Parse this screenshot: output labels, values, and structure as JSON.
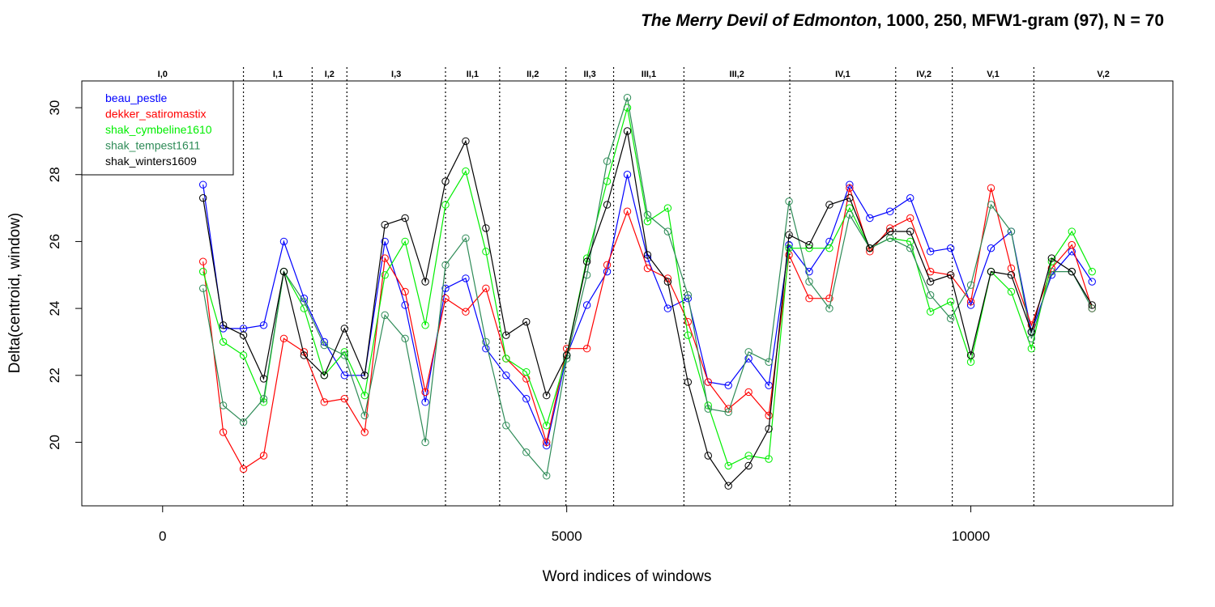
{
  "chart_data": {
    "type": "line",
    "title_italic": "The Merry Devil of Edmonton",
    "title_rest": ", 1000, 250, MFW1-gram (97), N = 70",
    "xlabel": "Word indices of windows",
    "ylabel": "Delta(centroid, window)",
    "xlim": [
      -1000,
      12500
    ],
    "ylim": [
      18.1,
      30.8
    ],
    "xticks": [
      0,
      5000,
      10000
    ],
    "yticks": [
      20,
      22,
      24,
      26,
      28,
      30
    ],
    "legend_position": "top-left",
    "x": [
      500,
      750,
      1000,
      1250,
      1500,
      1750,
      2000,
      2250,
      2500,
      2750,
      3000,
      3250,
      3500,
      3750,
      4000,
      4250,
      4500,
      4750,
      5000,
      5250,
      5500,
      5750,
      6000,
      6250,
      6500,
      6750,
      7000,
      7250,
      7500,
      7750,
      8000,
      8250,
      8500,
      8750,
      9000,
      9250,
      9500,
      9750,
      10000,
      10250,
      10500,
      10750,
      11000,
      11250,
      11500
    ],
    "series": [
      {
        "name": "beau_pestle",
        "color": "#0000ff",
        "values": [
          27.7,
          23.4,
          23.4,
          23.5,
          26.0,
          24.3,
          23.0,
          22.0,
          22.0,
          26.0,
          24.1,
          21.2,
          24.6,
          24.9,
          22.8,
          22.0,
          21.3,
          19.9,
          22.6,
          24.1,
          25.1,
          28.0,
          25.5,
          24.0,
          24.3,
          21.8,
          21.7,
          22.5,
          21.7,
          25.9,
          25.1,
          26.0,
          27.7,
          26.7,
          26.9,
          27.3,
          25.7,
          25.8,
          24.1,
          25.8,
          26.3,
          23.3,
          25.0,
          25.7,
          24.8
        ]
      },
      {
        "name": "dekker_satiromastix",
        "color": "#ff0000",
        "values": [
          25.4,
          20.3,
          19.2,
          19.6,
          23.1,
          22.7,
          21.2,
          21.3,
          20.3,
          25.5,
          24.5,
          21.5,
          24.3,
          23.9,
          24.6,
          22.5,
          21.9,
          20.0,
          22.8,
          22.8,
          25.3,
          26.9,
          25.2,
          24.9,
          23.6,
          21.8,
          21.0,
          21.5,
          20.8,
          25.6,
          24.3,
          24.3,
          27.6,
          25.7,
          26.4,
          26.7,
          25.1,
          25.0,
          24.2,
          27.6,
          25.2,
          23.5,
          25.2,
          25.9,
          24.0
        ]
      },
      {
        "name": "shak_cymbeline1610",
        "color": "#00ee00",
        "values": [
          25.1,
          23.0,
          22.6,
          21.2,
          25.1,
          24.0,
          22.0,
          22.7,
          21.4,
          25.0,
          26.0,
          23.5,
          27.1,
          28.1,
          25.7,
          22.5,
          22.1,
          20.5,
          22.6,
          25.5,
          27.8,
          30.0,
          26.6,
          27.0,
          23.2,
          21.1,
          19.3,
          19.6,
          19.5,
          25.8,
          25.8,
          25.8,
          27.0,
          25.8,
          26.1,
          26.0,
          23.9,
          24.2,
          22.4,
          25.1,
          24.5,
          22.8,
          25.4,
          26.3,
          25.1
        ]
      },
      {
        "name": "shak_tempest1611",
        "color": "#2e8b57",
        "values": [
          24.6,
          21.1,
          20.6,
          21.3,
          25.1,
          24.2,
          22.9,
          22.6,
          20.8,
          23.8,
          23.1,
          20.0,
          25.3,
          26.1,
          23.0,
          20.5,
          19.7,
          19.0,
          22.5,
          25.0,
          28.4,
          30.3,
          26.8,
          26.3,
          24.4,
          21.0,
          20.9,
          22.7,
          22.4,
          27.2,
          24.8,
          24.0,
          26.8,
          25.8,
          26.1,
          25.8,
          24.4,
          23.7,
          24.7,
          27.1,
          26.3,
          23.1,
          25.1,
          25.1,
          24.0
        ]
      },
      {
        "name": "shak_winters1609",
        "color": "#000000",
        "values": [
          27.3,
          23.5,
          23.2,
          21.9,
          25.1,
          22.6,
          22.0,
          23.4,
          22.0,
          26.5,
          26.7,
          24.8,
          27.8,
          29.0,
          26.4,
          23.2,
          23.6,
          21.4,
          22.6,
          25.4,
          27.1,
          29.3,
          25.6,
          24.8,
          21.8,
          19.6,
          18.7,
          19.3,
          20.4,
          26.2,
          25.9,
          27.1,
          27.3,
          25.8,
          26.3,
          26.3,
          24.8,
          25.0,
          22.6,
          25.1,
          25.0,
          23.3,
          25.5,
          25.1,
          24.1
        ]
      }
    ],
    "scenes": [
      {
        "label": "I,0",
        "start": -1000,
        "end": 1000
      },
      {
        "label": "I,1",
        "start": 1000,
        "end": 1850
      },
      {
        "label": "I,2",
        "start": 1850,
        "end": 2280
      },
      {
        "label": "I,3",
        "start": 2280,
        "end": 3500
      },
      {
        "label": "II,1",
        "start": 3500,
        "end": 4170
      },
      {
        "label": "II,2",
        "start": 4170,
        "end": 4990
      },
      {
        "label": "II,3",
        "start": 4990,
        "end": 5580
      },
      {
        "label": "III,1",
        "start": 5580,
        "end": 6450
      },
      {
        "label": "III,2",
        "start": 6450,
        "end": 7760
      },
      {
        "label": "IV,1",
        "start": 7760,
        "end": 9070
      },
      {
        "label": "IV,2",
        "start": 9070,
        "end": 9770
      },
      {
        "label": "V,1",
        "start": 9770,
        "end": 10780
      },
      {
        "label": "V,2",
        "start": 10780,
        "end": 12500
      }
    ]
  }
}
